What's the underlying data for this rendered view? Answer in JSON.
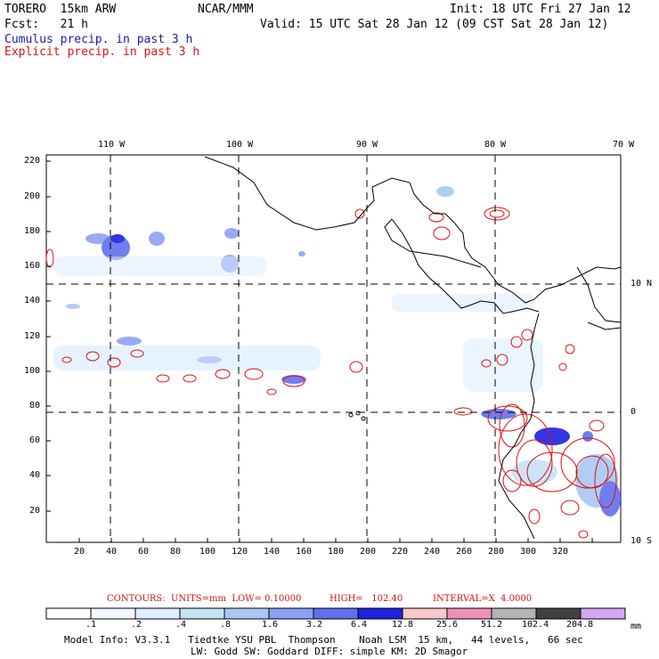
{
  "header": {
    "model": "TORERO  15km ARW",
    "org": "NCAR/MMM",
    "init": "Init: 18 UTC Fri 27 Jan 12",
    "fcst": "Fcst:   21 h",
    "valid": "Valid: 15 UTC Sat 28 Jan 12 (09 CST Sat 28 Jan 12)",
    "legend_cumulus": "Cumulus precip. in past 3 h",
    "legend_explicit": "Explicit precip. in past 3 h"
  },
  "colors": {
    "cumulus": "#1a1aa6",
    "explicit": "#e01010"
  },
  "axes": {
    "top_lon": [
      "110 W",
      "100 W",
      "90 W",
      "80 W",
      "70 W"
    ],
    "right_lat": [
      "10 N",
      "0",
      "10 S"
    ],
    "left_y": [
      "220",
      "200",
      "180",
      "160",
      "140",
      "120",
      "100",
      "80",
      "60",
      "40",
      "20"
    ],
    "bottom_x": [
      "20",
      "40",
      "60",
      "80",
      "100",
      "120",
      "140",
      "160",
      "180",
      "200",
      "220",
      "240",
      "260",
      "280",
      "300",
      "320"
    ]
  },
  "contours": {
    "label": "CONTOURS:  UNITS=mm  LOW= 0.10000",
    "high": "HIGH=   102.40",
    "interval": "INTERVAL=X  4.0000"
  },
  "colorbar": {
    "colors": [
      "#ffffff",
      "#f0f6ff",
      "#dceeff",
      "#c4e2f6",
      "#a8c8f4",
      "#8ea0f4",
      "#6070ec",
      "#2020e0",
      "#f8c8c8",
      "#f090b8",
      "#b4b4b4",
      "#404040",
      "#d4a8f4"
    ],
    "ticks": [
      ".1",
      ".2",
      ".4",
      ".8",
      "1.6",
      "3.2",
      "6.4",
      "12.8",
      "25.6",
      "51.2",
      "102.4",
      "204.8"
    ],
    "units": "mm"
  },
  "footer": {
    "line1": "Model Info: V3.3.1   Tiedtke YSU PBL  Thompson    Noah LSM  15 km,   44 levels,   66 sec",
    "line2": "LW: Godd SW: Goddard DIFF: simple KM: 2D Smagor"
  }
}
